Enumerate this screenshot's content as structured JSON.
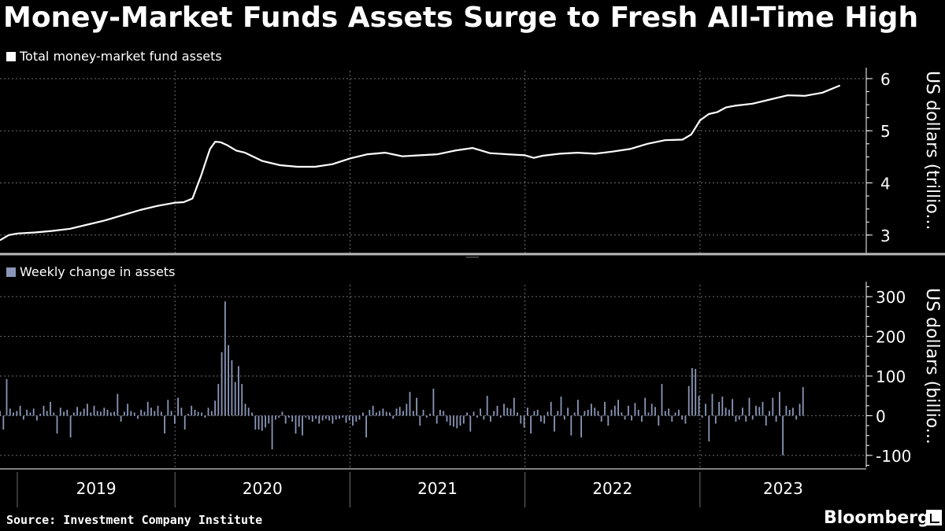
{
  "title": "Money-Market Funds Assets Surge to Fresh All-Time High",
  "source": "Source: Investment Company Institute",
  "brand": "Bloomberg",
  "colors": {
    "background": "#000000",
    "line": "#ffffff",
    "bar": "#8a97b8",
    "grid": "#6e6e6e",
    "text": "#ffffff"
  },
  "chart_data": [
    {
      "type": "line",
      "legend": "Total money-market fund assets",
      "ylabel": "US dollars (trillio...",
      "ylim": [
        2.65,
        6.15
      ],
      "yticks": [
        "3",
        "4",
        "5",
        "6"
      ],
      "xlim": [
        2019.0,
        2023.95
      ],
      "grid": true,
      "series": [
        {
          "name": "Total money-market fund assets",
          "x": [
            2019.0,
            2019.05,
            2019.1,
            2019.2,
            2019.3,
            2019.4,
            2019.5,
            2019.6,
            2019.7,
            2019.8,
            2019.9,
            2020.0,
            2020.05,
            2020.1,
            2020.15,
            2020.18,
            2020.2,
            2020.23,
            2020.26,
            2020.3,
            2020.35,
            2020.4,
            2020.5,
            2020.6,
            2020.7,
            2020.8,
            2020.9,
            2021.0,
            2021.1,
            2021.2,
            2021.3,
            2021.4,
            2021.5,
            2021.6,
            2021.7,
            2021.8,
            2021.9,
            2022.0,
            2022.05,
            2022.1,
            2022.2,
            2022.3,
            2022.4,
            2022.5,
            2022.6,
            2022.7,
            2022.8,
            2022.9,
            2022.95,
            2023.0,
            2023.05,
            2023.1,
            2023.15,
            2023.2,
            2023.3,
            2023.4,
            2023.5,
            2023.6,
            2023.7,
            2023.8
          ],
          "values": [
            2.9,
            3.0,
            3.03,
            3.05,
            3.08,
            3.12,
            3.2,
            3.28,
            3.38,
            3.48,
            3.56,
            3.62,
            3.63,
            3.7,
            4.15,
            4.45,
            4.65,
            4.79,
            4.78,
            4.72,
            4.62,
            4.58,
            4.42,
            4.34,
            4.31,
            4.31,
            4.36,
            4.47,
            4.55,
            4.58,
            4.51,
            4.53,
            4.55,
            4.62,
            4.67,
            4.57,
            4.55,
            4.53,
            4.48,
            4.52,
            4.56,
            4.58,
            4.56,
            4.6,
            4.65,
            4.75,
            4.82,
            4.83,
            4.93,
            5.2,
            5.32,
            5.36,
            5.45,
            5.48,
            5.52,
            5.6,
            5.68,
            5.67,
            5.73,
            5.87
          ]
        }
      ]
    },
    {
      "type": "bar",
      "legend": "Weekly change in assets",
      "ylabel": "US dollars (billio...",
      "ylim": [
        -130,
        330
      ],
      "yticks": [
        "300",
        "200",
        "100",
        "0",
        "-100"
      ],
      "xlim": [
        2019.0,
        2023.95
      ],
      "x_tick_labels": [
        "2019",
        "2020",
        "2021",
        "2022",
        "2023"
      ],
      "grid": true,
      "series": [
        {
          "name": "Weekly change in assets",
          "start": 2019.0,
          "step": 0.0192,
          "values": [
            12,
            -35,
            92,
            18,
            8,
            12,
            25,
            -10,
            15,
            8,
            18,
            -12,
            5,
            25,
            12,
            35,
            8,
            -45,
            20,
            10,
            15,
            -55,
            8,
            22,
            10,
            18,
            30,
            8,
            25,
            12,
            10,
            20,
            15,
            8,
            10,
            55,
            -15,
            10,
            30,
            12,
            8,
            -8,
            15,
            10,
            35,
            20,
            12,
            25,
            10,
            -45,
            40,
            12,
            -20,
            45,
            20,
            -35,
            5,
            25,
            15,
            10,
            8,
            -5,
            20,
            12,
            38,
            80,
            160,
            288,
            178,
            140,
            85,
            125,
            80,
            30,
            20,
            8,
            -35,
            -35,
            -38,
            -30,
            -20,
            -85,
            -10,
            -5,
            10,
            -20,
            -5,
            -15,
            -45,
            -28,
            -50,
            -5,
            -10,
            -15,
            -8,
            -20,
            -12,
            -8,
            -12,
            -20,
            -10,
            -8,
            -5,
            -18,
            -12,
            -25,
            -15,
            -10,
            8,
            -55,
            15,
            25,
            8,
            12,
            18,
            10,
            8,
            -8,
            18,
            22,
            12,
            30,
            60,
            12,
            45,
            -25,
            15,
            -5,
            5,
            68,
            -20,
            15,
            12,
            -15,
            -25,
            -28,
            -32,
            -25,
            -20,
            8,
            -40,
            10,
            -5,
            18,
            -10,
            50,
            -15,
            12,
            25,
            -5,
            30,
            20,
            18,
            45,
            8,
            -20,
            -30,
            20,
            -45,
            12,
            15,
            -15,
            -20,
            10,
            35,
            -40,
            12,
            48,
            -10,
            20,
            -50,
            8,
            40,
            -55,
            12,
            15,
            30,
            20,
            12,
            -15,
            35,
            -25,
            15,
            25,
            40,
            8,
            -10,
            25,
            -12,
            32,
            15,
            -15,
            45,
            8,
            30,
            22,
            -25,
            80,
            12,
            18,
            -15,
            8,
            15,
            -10,
            -20,
            75,
            120,
            118,
            50,
            -5,
            30,
            -65,
            55,
            -20,
            35,
            48,
            20,
            15,
            42,
            -15,
            -10,
            20,
            -15,
            45,
            -10,
            25,
            22,
            35,
            -25,
            12,
            45,
            -15,
            60,
            -100,
            25,
            15,
            20,
            -10,
            30,
            72
          ]
        }
      ]
    }
  ]
}
